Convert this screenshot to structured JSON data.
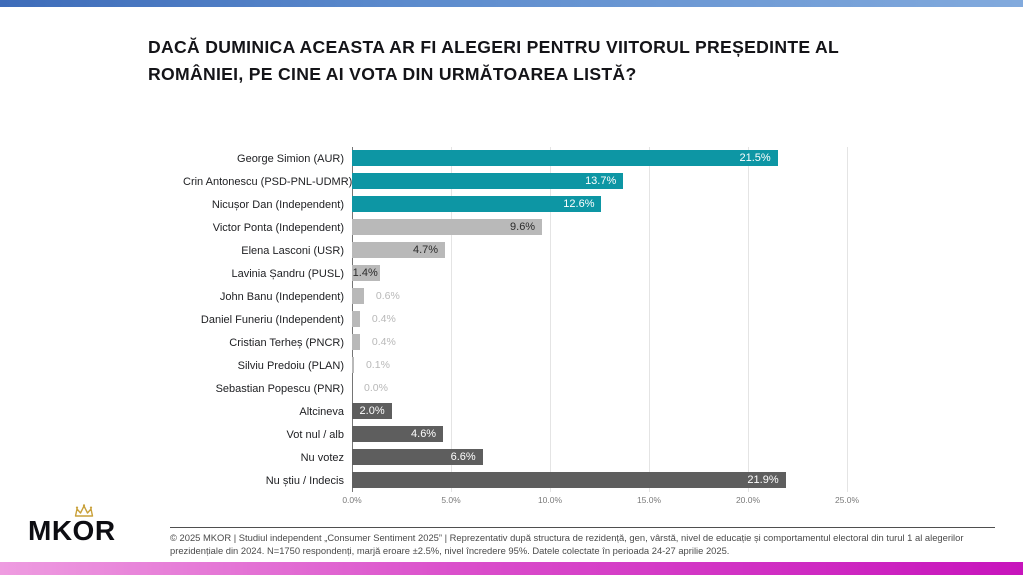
{
  "header": {
    "title": "DACĂ DUMINICA ACEASTA AR FI ALEGERI PENTRU VIITORUL PREȘEDINTE AL ROMÂNIEI, PE CINE AI VOTA DIN URMĂTOAREA LISTĂ?"
  },
  "chart_data": {
    "type": "bar",
    "orientation": "horizontal",
    "title": "Dacă duminica aceasta ar fi alegeri pentru viitorul președinte al României, pe cine ai vota din următoarea listă?",
    "xlabel": "",
    "ylabel": "",
    "xlim": [
      0,
      25
    ],
    "grid": true,
    "x_ticks": [
      "0.0%",
      "5.0%",
      "10.0%",
      "15.0%",
      "20.0%",
      "25.0%"
    ],
    "categories": [
      "George Simion (AUR)",
      "Crin Antonescu (PSD-PNL-UDMR)",
      "Nicușor Dan (Independent)",
      "Victor Ponta (Independent)",
      "Elena Lasconi (USR)",
      "Lavinia Șandru (PUSL)",
      "John Banu (Independent)",
      "Daniel Funeriu (Independent)",
      "Cristian Terheș (PNCR)",
      "Silviu Predoiu (PLAN)",
      "Sebastian Popescu (PNR)",
      "Altcineva",
      "Vot nul / alb",
      "Nu votez",
      "Nu știu / Indecis"
    ],
    "values": [
      21.5,
      13.7,
      12.6,
      9.6,
      4.7,
      1.4,
      0.6,
      0.4,
      0.4,
      0.1,
      0.0,
      2.0,
      4.6,
      6.6,
      21.9
    ],
    "items": [
      {
        "category": "George Simion (AUR)",
        "value": 21.5,
        "display": "21.5%",
        "group": "teal",
        "label_placement": "inside-white"
      },
      {
        "category": "Crin Antonescu (PSD-PNL-UDMR)",
        "value": 13.7,
        "display": "13.7%",
        "group": "teal",
        "label_placement": "inside-white"
      },
      {
        "category": "Nicușor Dan (Independent)",
        "value": 12.6,
        "display": "12.6%",
        "group": "teal",
        "label_placement": "inside-white"
      },
      {
        "category": "Victor Ponta (Independent)",
        "value": 9.6,
        "display": "9.6%",
        "group": "light",
        "label_placement": "inside-dark"
      },
      {
        "category": "Elena Lasconi (USR)",
        "value": 4.7,
        "display": "4.7%",
        "group": "light",
        "label_placement": "inside-dark"
      },
      {
        "category": "Lavinia Șandru (PUSL)",
        "value": 1.4,
        "display": "1.4%",
        "group": "light",
        "label_placement": "inside-dark"
      },
      {
        "category": "John Banu (Independent)",
        "value": 0.6,
        "display": "0.6%",
        "group": "light",
        "label_placement": "outside"
      },
      {
        "category": "Daniel Funeriu (Independent)",
        "value": 0.4,
        "display": "0.4%",
        "group": "light",
        "label_placement": "outside"
      },
      {
        "category": "Cristian Terheș (PNCR)",
        "value": 0.4,
        "display": "0.4%",
        "group": "light",
        "label_placement": "outside"
      },
      {
        "category": "Silviu Predoiu (PLAN)",
        "value": 0.1,
        "display": "0.1%",
        "group": "light",
        "label_placement": "outside"
      },
      {
        "category": "Sebastian Popescu (PNR)",
        "value": 0.0,
        "display": "0.0%",
        "group": "light",
        "label_placement": "outside"
      },
      {
        "category": "Altcineva",
        "value": 2.0,
        "display": "2.0%",
        "group": "dark",
        "label_placement": "inside-white"
      },
      {
        "category": "Vot nul / alb",
        "value": 4.6,
        "display": "4.6%",
        "group": "dark",
        "label_placement": "inside-white"
      },
      {
        "category": "Nu votez",
        "value": 6.6,
        "display": "6.6%",
        "group": "dark",
        "label_placement": "inside-white"
      },
      {
        "category": "Nu știu / Indecis",
        "value": 21.9,
        "display": "21.9%",
        "group": "dark",
        "label_placement": "inside-white"
      }
    ],
    "colors": {
      "teal": "#0D96A4",
      "light": "#B9B9B9",
      "dark": "#5E5E5E"
    },
    "legend": null
  },
  "branding": {
    "logo": {
      "part1": "MK",
      "part2": "O",
      "part3": "R"
    },
    "crown_color": "#C9A13B"
  },
  "footer": {
    "text": "© 2025 MKOR | Studiul independent „Consumer Sentiment 2025” | Reprezentativ după structura de rezidență, gen, vârstă, nivel de educație și comportamentul electoral din turul 1 al alegerilor prezidențiale din 2024. N=1750 respondenți, marjă eroare ±2.5%, nivel încredere 95%. Datele colectate în perioada 24-27 aprilie 2025."
  },
  "decor": {
    "top_bar_gradient": [
      "#3E6CB9",
      "#82AADD"
    ],
    "bottom_bar_gradient": [
      "#EE9CE0",
      "#C714BC"
    ]
  }
}
